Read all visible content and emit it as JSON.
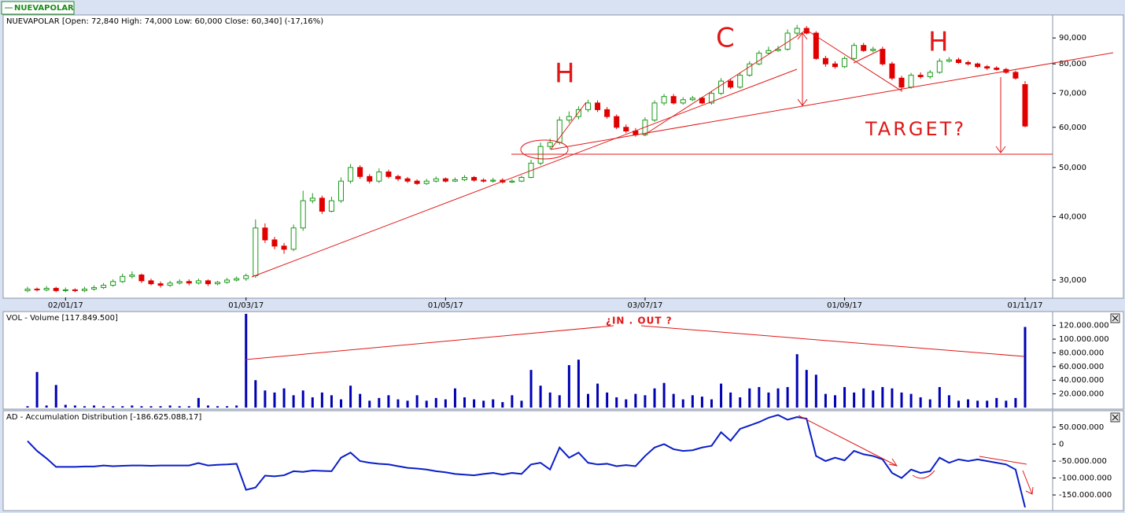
{
  "tab": "NUEVAPOLAR",
  "chart_data": [
    {
      "type": "candlestick",
      "title": "NUEVAPOLAR [Open: 72,840  High: 74,000  Low: 60,000  Close: 60,340] (-17,16%)",
      "categories": [
        null,
        null,
        null,
        null,
        "02/01/17",
        null,
        null,
        null,
        null,
        null,
        null,
        null,
        null,
        null,
        null,
        null,
        null,
        null,
        null,
        null,
        null,
        null,
        null,
        "01/03/17",
        null,
        null,
        null,
        null,
        null,
        null,
        null,
        null,
        null,
        null,
        null,
        null,
        null,
        null,
        null,
        null,
        null,
        null,
        null,
        null,
        "01/05/17",
        null,
        null,
        null,
        null,
        null,
        null,
        null,
        null,
        null,
        null,
        null,
        null,
        null,
        null,
        null,
        null,
        null,
        null,
        null,
        null,
        "03/07/17",
        null,
        null,
        null,
        null,
        null,
        null,
        null,
        null,
        null,
        null,
        null,
        null,
        null,
        null,
        null,
        null,
        null,
        null,
        null,
        null,
        "01/09/17",
        null,
        null,
        null,
        null,
        null,
        null,
        null,
        null,
        null,
        null,
        null,
        null,
        null,
        null,
        null,
        null,
        null,
        null,
        "01/11/17"
      ],
      "open": [
        28600,
        28800,
        28700,
        28900,
        28600,
        28700,
        28600,
        28800,
        29000,
        29300,
        29800,
        30500,
        30700,
        29900,
        29500,
        29300,
        29600,
        29800,
        29600,
        29900,
        29500,
        29700,
        30000,
        30200,
        30600,
        38000,
        36000,
        35000,
        34500,
        38000,
        43000,
        43500,
        41000,
        43000,
        47000,
        50000,
        48000,
        47000,
        49000,
        48000,
        47500,
        47000,
        46500,
        47000,
        47500,
        47000,
        47300,
        47800,
        47200,
        47000,
        47200,
        46800,
        47000,
        47800,
        51000,
        55000,
        56000,
        62000,
        63000,
        65000,
        67000,
        65000,
        63000,
        60000,
        59000,
        58000,
        62000,
        67000,
        69000,
        67000,
        68000,
        68500,
        67000,
        70000,
        74000,
        72000,
        76000,
        80000,
        84000,
        85000,
        85500,
        92000,
        94000,
        92000,
        82000,
        80000,
        79000,
        82000,
        87000,
        85000,
        85500,
        80000,
        75000,
        72000,
        76000,
        75500,
        77000,
        81000,
        81500,
        80500,
        80000,
        79000,
        78500,
        78000,
        77000,
        72840
      ],
      "high": [
        29100,
        29000,
        29200,
        29100,
        29000,
        28900,
        29100,
        29300,
        29600,
        30100,
        30900,
        31200,
        30900,
        30200,
        29800,
        29900,
        30100,
        30100,
        30200,
        30100,
        29900,
        30300,
        30500,
        30900,
        39500,
        38800,
        36500,
        35500,
        38600,
        45000,
        44500,
        44000,
        43800,
        47800,
        50800,
        50500,
        48500,
        49800,
        49500,
        48400,
        47900,
        47400,
        47500,
        48000,
        47800,
        47800,
        48300,
        48100,
        47600,
        47700,
        47600,
        47400,
        48200,
        51800,
        56000,
        57000,
        63000,
        64500,
        66000,
        68000,
        67800,
        65800,
        63600,
        60800,
        59800,
        62800,
        67800,
        69800,
        69800,
        68800,
        69200,
        68900,
        70800,
        75000,
        74800,
        77000,
        81000,
        85000,
        86500,
        86800,
        93500,
        95500,
        95000,
        92800,
        83000,
        81000,
        82800,
        88000,
        88000,
        86500,
        86500,
        80800,
        75800,
        76800,
        77000,
        77800,
        82000,
        82500,
        82300,
        81200,
        80500,
        79600,
        79200,
        78600,
        77600,
        74000
      ],
      "low": [
        28400,
        28500,
        28500,
        28400,
        28400,
        28400,
        28400,
        28600,
        28800,
        29100,
        29600,
        30200,
        29600,
        29300,
        29000,
        29100,
        29400,
        29300,
        29400,
        29200,
        29300,
        29500,
        29800,
        29900,
        30300,
        35500,
        34500,
        33800,
        34200,
        37500,
        42500,
        40500,
        40800,
        42600,
        46500,
        47500,
        46500,
        46600,
        47600,
        47000,
        46600,
        46200,
        46200,
        46700,
        46700,
        46800,
        47000,
        46900,
        46700,
        46700,
        46500,
        46600,
        46800,
        47600,
        50500,
        54300,
        55500,
        61200,
        62200,
        64300,
        64300,
        62400,
        59500,
        58400,
        57500,
        57600,
        61500,
        66300,
        66500,
        66500,
        67600,
        66600,
        66500,
        69500,
        71400,
        71500,
        75500,
        79500,
        83500,
        84500,
        85000,
        91000,
        91500,
        81500,
        79000,
        78300,
        78500,
        81500,
        84500,
        84300,
        79400,
        74300,
        70500,
        71500,
        74800,
        74800,
        76500,
        80500,
        80000,
        79400,
        78500,
        77800,
        77600,
        76500,
        74500,
        60000
      ],
      "close": [
        28800,
        28700,
        28900,
        28600,
        28700,
        28600,
        28800,
        29000,
        29300,
        29800,
        30500,
        30700,
        29900,
        29500,
        29300,
        29600,
        29800,
        29600,
        29900,
        29500,
        29700,
        30000,
        30200,
        30600,
        38000,
        36000,
        35000,
        34500,
        38000,
        43000,
        43500,
        41000,
        43000,
        47000,
        50000,
        48000,
        47000,
        49000,
        48000,
        47500,
        47000,
        46500,
        47000,
        47500,
        47000,
        47300,
        47800,
        47200,
        47000,
        47200,
        46800,
        47000,
        47800,
        51000,
        55000,
        56000,
        62000,
        63000,
        65000,
        67000,
        65000,
        63000,
        60000,
        59000,
        58000,
        62000,
        67000,
        69000,
        67000,
        68000,
        68500,
        67000,
        70000,
        74000,
        72000,
        76000,
        80000,
        84000,
        85000,
        85500,
        92000,
        94000,
        92000,
        82000,
        80000,
        79000,
        82000,
        87000,
        85000,
        85500,
        80000,
        75000,
        72000,
        76000,
        75500,
        77000,
        81000,
        81500,
        80500,
        80000,
        79000,
        78500,
        78000,
        77000,
        75000,
        60340
      ],
      "up_color": "#1a9a1a",
      "down_color": "#e00000",
      "log_scale": true,
      "ylim": [
        27730,
        99900
      ],
      "yticks": [
        {
          "value": 30000,
          "label": "30,000"
        },
        {
          "value": 40000,
          "label": "40,000"
        },
        {
          "value": 50000,
          "label": "50,000"
        },
        {
          "value": 60000,
          "label": "60,000"
        },
        {
          "value": 70000,
          "label": "70,000"
        },
        {
          "value": 80000,
          "label": "80,000"
        },
        {
          "value": 90000,
          "label": "90,000"
        }
      ],
      "annotations": [
        "H",
        "C",
        "H",
        "TARGET?"
      ]
    },
    {
      "type": "bar",
      "title": "VOL - Volume [117.849.500]",
      "color": "#0000b4",
      "values": [
        2000000,
        52000000,
        3000000,
        33000000,
        4000000,
        3000000,
        2000000,
        3000000,
        2000000,
        2000000,
        2000000,
        3000000,
        2000000,
        2000000,
        2000000,
        3000000,
        2000000,
        2000000,
        14000000,
        3000000,
        2000000,
        2000000,
        3000000,
        137000000,
        40000000,
        25000000,
        22000000,
        28000000,
        18000000,
        25000000,
        15000000,
        22000000,
        18000000,
        12000000,
        32000000,
        20000000,
        10000000,
        14000000,
        18000000,
        12000000,
        10000000,
        18000000,
        10000000,
        14000000,
        12000000,
        28000000,
        15000000,
        12000000,
        10000000,
        12000000,
        8000000,
        18000000,
        10000000,
        55000000,
        32000000,
        22000000,
        18000000,
        62000000,
        70000000,
        20000000,
        35000000,
        22000000,
        15000000,
        12000000,
        20000000,
        18000000,
        28000000,
        36000000,
        20000000,
        12000000,
        18000000,
        16000000,
        12000000,
        35000000,
        22000000,
        15000000,
        28000000,
        30000000,
        22000000,
        28000000,
        30000000,
        78000000,
        55000000,
        48000000,
        20000000,
        18000000,
        30000000,
        22000000,
        28000000,
        25000000,
        30000000,
        28000000,
        22000000,
        20000000,
        15000000,
        12000000,
        30000000,
        18000000,
        10000000,
        12000000,
        10000000,
        10000000,
        14000000,
        10000000,
        14000000,
        117849500
      ],
      "ylim": [
        0,
        138000000
      ],
      "yticks": [
        {
          "value": 20000000,
          "label": "20.000.000"
        },
        {
          "value": 40000000,
          "label": "40.000.000"
        },
        {
          "value": 60000000,
          "label": "60.000.000"
        },
        {
          "value": 80000000,
          "label": "80.000.000"
        },
        {
          "value": 100000000,
          "label": "100.000.000"
        },
        {
          "value": 120000000,
          "label": "120.000.000"
        }
      ],
      "annotations": [
        "¿IN . OUT ?"
      ]
    },
    {
      "type": "line",
      "title": "AD - Accumulation Distribution [-186.625.088,17]",
      "color": "#0a1ec8",
      "values": [
        9000000,
        -20000000,
        -42000000,
        -67000000,
        -67000000,
        -67000000,
        -66000000,
        -66000000,
        -63000000,
        -65000000,
        -64000000,
        -63000000,
        -63000000,
        -64000000,
        -63000000,
        -63000000,
        -63000000,
        -63000000,
        -56000000,
        -63000000,
        -61000000,
        -60000000,
        -58000000,
        -135000000,
        -128000000,
        -93000000,
        -95000000,
        -92000000,
        -80000000,
        -82000000,
        -78000000,
        -79000000,
        -80000000,
        -40000000,
        -25000000,
        -50000000,
        -55000000,
        -58000000,
        -60000000,
        -65000000,
        -70000000,
        -72000000,
        -75000000,
        -80000000,
        -83000000,
        -88000000,
        -90000000,
        -92000000,
        -88000000,
        -85000000,
        -90000000,
        -85000000,
        -88000000,
        -60000000,
        -55000000,
        -75000000,
        -10000000,
        -40000000,
        -25000000,
        -55000000,
        -60000000,
        -58000000,
        -65000000,
        -62000000,
        -65000000,
        -35000000,
        -10000000,
        0,
        -15000000,
        -20000000,
        -18000000,
        -10000000,
        -5000000,
        35000000,
        10000000,
        45000000,
        55000000,
        65000000,
        78000000,
        86000000,
        72000000,
        80000000,
        75000000,
        -35000000,
        -50000000,
        -40000000,
        -48000000,
        -20000000,
        -30000000,
        -35000000,
        -45000000,
        -85000000,
        -100000000,
        -75000000,
        -85000000,
        -80000000,
        -40000000,
        -55000000,
        -45000000,
        -50000000,
        -45000000,
        -50000000,
        -55000000,
        -60000000,
        -75000000,
        -186625088.17
      ],
      "ylim": [
        -194000000,
        94000000
      ],
      "yticks": [
        {
          "value": 50000000,
          "label": "50.000.000"
        },
        0,
        {
          "value": -50000000,
          "label": "-50.000.000"
        },
        {
          "value": -100000000,
          "label": "-100.000.000"
        },
        {
          "value": -150000000,
          "label": "-150.000.000"
        }
      ]
    }
  ]
}
